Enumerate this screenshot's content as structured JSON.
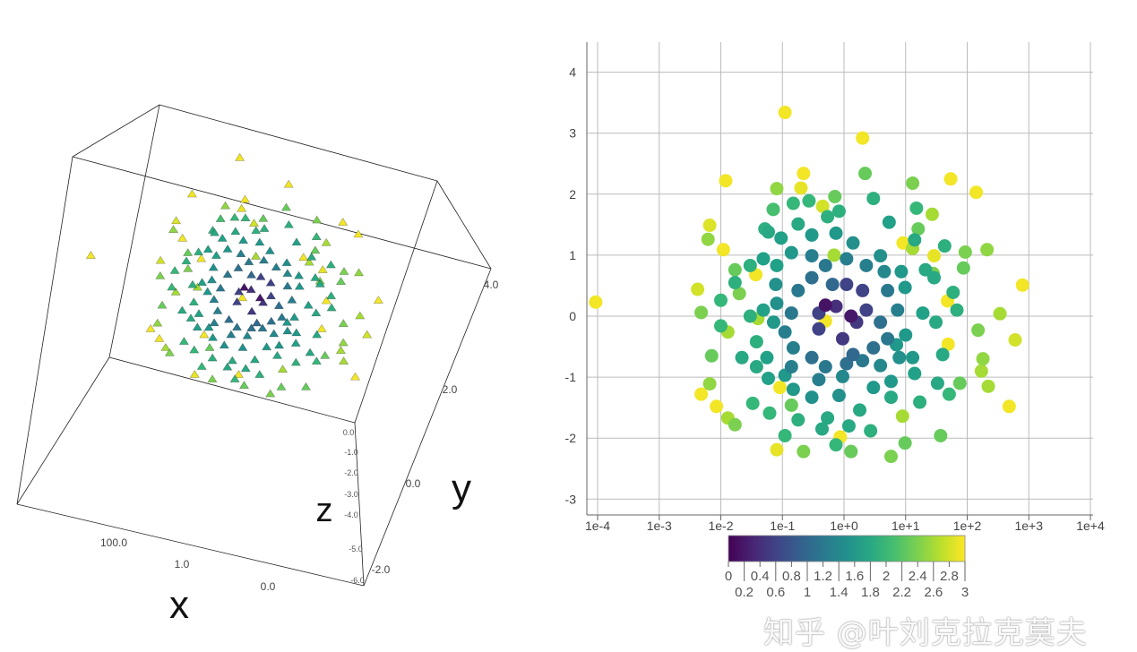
{
  "chart_data": [
    {
      "type": "scatter3d",
      "axes": {
        "x": {
          "label": "x",
          "ticks": [
            "100.0",
            "1.0",
            "0.0"
          ]
        },
        "y": {
          "label": "y",
          "ticks": [
            "4.0",
            "2.0",
            "0.0",
            "-2.0"
          ]
        },
        "z": {
          "label": "z",
          "ticks": [
            "0.0",
            "-1.0",
            "-2.0",
            "-3.0",
            "-4.0",
            "-5.0",
            "-6.0"
          ]
        }
      },
      "marker": "pyramid",
      "colorscale": "viridis"
    },
    {
      "type": "scatter",
      "xaxis": {
        "type": "log",
        "range": [
          0.0001,
          10000
        ],
        "ticks": [
          "1e-4",
          "1e-3",
          "1e-2",
          "1e-1",
          "1e+0",
          "1e+1",
          "1e+2",
          "1e+3",
          "1e+4"
        ]
      },
      "yaxis": {
        "range": [
          -3.3,
          4.5
        ],
        "ticks": [
          "-3",
          "-2",
          "-1",
          "0",
          "1",
          "2",
          "3",
          "4"
        ]
      },
      "grid": true,
      "colorscale": "viridis",
      "colorbar": {
        "placement": "bottom",
        "range": [
          0,
          3
        ],
        "ticks": [
          "0",
          "0.2",
          "0.4",
          "0.6",
          "0.8",
          "1",
          "1.2",
          "1.4",
          "1.6",
          "1.8",
          "2",
          "2.2",
          "2.4",
          "2.6",
          "2.8",
          "3"
        ]
      },
      "points_xyc": [
        [
          0.11,
          3.34,
          2.95
        ],
        [
          2.0,
          2.92,
          2.95
        ],
        [
          0.012,
          2.22,
          2.95
        ],
        [
          0.22,
          2.34,
          2.95
        ],
        [
          0.2,
          2.1,
          2.9
        ],
        [
          54,
          2.25,
          2.95
        ],
        [
          140,
          2.03,
          2.95
        ],
        [
          0.0066,
          1.49,
          2.85
        ],
        [
          0.011,
          1.09,
          2.95
        ],
        [
          0.45,
          1.8,
          2.8
        ],
        [
          9.1,
          1.2,
          2.95
        ],
        [
          0.037,
          0.68,
          2.95
        ],
        [
          790,
          0.51,
          2.95
        ],
        [
          48,
          0.25,
          2.95
        ],
        [
          9.3e-05,
          0.23,
          2.95
        ],
        [
          0.0042,
          0.44,
          2.8
        ],
        [
          0.5,
          -0.08,
          2.95
        ],
        [
          49,
          -0.46,
          2.95
        ],
        [
          600,
          -0.39,
          2.8
        ],
        [
          0.0048,
          -1.28,
          2.95
        ],
        [
          0.0085,
          -1.48,
          2.95
        ],
        [
          0.091,
          -1.17,
          2.95
        ],
        [
          480,
          -1.48,
          2.95
        ],
        [
          0.87,
          -1.98,
          2.95
        ],
        [
          0.081,
          -2.19,
          2.9
        ],
        [
          29,
          0.99,
          2.9
        ],
        [
          2.2,
          2.34,
          2.3
        ],
        [
          13,
          2.18,
          2.4
        ],
        [
          0.71,
          1.96,
          2.3
        ],
        [
          0.081,
          2.09,
          2.5
        ],
        [
          27,
          1.67,
          2.6
        ],
        [
          16,
          1.43,
          2.3
        ],
        [
          0.0062,
          1.26,
          2.5
        ],
        [
          210,
          1.09,
          2.5
        ],
        [
          93,
          1.05,
          2.4
        ],
        [
          87,
          0.79,
          2.3
        ],
        [
          0.017,
          0.76,
          2.3
        ],
        [
          0.02,
          0.37,
          2.4
        ],
        [
          0.0048,
          0.06,
          2.4
        ],
        [
          340,
          0.04,
          2.6
        ],
        [
          150,
          -0.23,
          2.4
        ],
        [
          0.013,
          -0.26,
          2.6
        ],
        [
          0.0071,
          -0.65,
          2.3
        ],
        [
          0.0066,
          -1.11,
          2.5
        ],
        [
          180,
          -0.7,
          2.5
        ],
        [
          170,
          -0.9,
          2.6
        ],
        [
          220,
          -1.15,
          2.6
        ],
        [
          76,
          -1.1,
          2.3
        ],
        [
          0.013,
          -1.67,
          2.6
        ],
        [
          0.017,
          -1.78,
          2.4
        ],
        [
          0.14,
          -1.46,
          2.3
        ],
        [
          8.9,
          -1.64,
          2.6
        ],
        [
          9.8,
          -2.08,
          2.3
        ],
        [
          5.8,
          -2.3,
          2.4
        ],
        [
          0.22,
          -2.22,
          2.4
        ],
        [
          1.3,
          -2.22,
          2.3
        ],
        [
          37,
          -1.96,
          2.3
        ],
        [
          0.04,
          -0.04,
          2.6
        ],
        [
          0.69,
          1.0,
          2.6
        ],
        [
          28,
          0.7,
          2.4
        ],
        [
          13,
          1.11,
          2.6
        ],
        [
          0.27,
          1.89,
          2.0
        ],
        [
          0.15,
          1.85,
          2.0
        ],
        [
          0.071,
          1.75,
          2.1
        ],
        [
          0.059,
          1.38,
          1.8
        ],
        [
          0.18,
          1.51,
          1.8
        ],
        [
          0.54,
          1.63,
          1.9
        ],
        [
          0.83,
          1.72,
          1.9
        ],
        [
          3.0,
          1.93,
          1.9
        ],
        [
          5.4,
          1.54,
          1.7
        ],
        [
          15,
          1.77,
          2.0
        ],
        [
          14,
          1.25,
          1.8
        ],
        [
          43,
          1.15,
          1.9
        ],
        [
          29,
          0.63,
          1.8
        ],
        [
          59,
          0.39,
          1.9
        ],
        [
          68,
          0.1,
          1.9
        ],
        [
          31,
          -0.1,
          1.8
        ],
        [
          40,
          -0.63,
          1.8
        ],
        [
          33,
          -1.1,
          1.8
        ],
        [
          51,
          -1.28,
          2.0
        ],
        [
          17,
          -1.41,
          1.9
        ],
        [
          14,
          -0.94,
          1.7
        ],
        [
          13,
          -0.68,
          1.6
        ],
        [
          7.1,
          -0.47,
          1.6
        ],
        [
          5.8,
          -1.07,
          1.6
        ],
        [
          5.8,
          -1.33,
          1.8
        ],
        [
          3.0,
          -1.17,
          1.6
        ],
        [
          2.7,
          -1.88,
          1.9
        ],
        [
          1.8,
          -1.54,
          1.8
        ],
        [
          1.2,
          -1.8,
          1.8
        ],
        [
          0.74,
          -2.11,
          2.0
        ],
        [
          0.54,
          -1.67,
          1.8
        ],
        [
          0.44,
          -1.85,
          1.8
        ],
        [
          0.18,
          -1.7,
          1.9
        ],
        [
          0.11,
          -1.96,
          2.0
        ],
        [
          0.062,
          -1.59,
          2.0
        ],
        [
          0.033,
          -1.43,
          2.0
        ],
        [
          0.059,
          -1.02,
          1.7
        ],
        [
          0.038,
          -0.83,
          1.8
        ],
        [
          0.022,
          -0.68,
          1.8
        ],
        [
          0.01,
          -0.16,
          2.0
        ],
        [
          0.01,
          0.26,
          2.0
        ],
        [
          0.017,
          0.55,
          1.9
        ],
        [
          0.03,
          0.83,
          1.9
        ],
        [
          0.049,
          0.94,
          1.7
        ],
        [
          0.052,
          1.43,
          1.9
        ],
        [
          0.095,
          1.28,
          1.7
        ],
        [
          0.038,
          -0.42,
          1.9
        ],
        [
          0.056,
          -0.68,
          1.7
        ],
        [
          0.11,
          -0.97,
          1.6
        ],
        [
          0.15,
          -1.2,
          1.6
        ],
        [
          0.3,
          -1.33,
          1.5
        ],
        [
          0.83,
          -1.3,
          1.5
        ],
        [
          0.95,
          -0.99,
          1.4
        ],
        [
          3.9,
          -0.81,
          1.4
        ],
        [
          7.9,
          -0.68,
          1.5
        ],
        [
          10,
          -0.31,
          1.6
        ],
        [
          19,
          0.05,
          1.7
        ],
        [
          9.8,
          0.47,
          1.6
        ],
        [
          8.5,
          0.73,
          1.6
        ],
        [
          21,
          0.76,
          1.8
        ],
        [
          3.9,
          0.99,
          1.5
        ],
        [
          1.4,
          1.2,
          1.5
        ],
        [
          0.74,
          1.36,
          1.6
        ],
        [
          0.3,
          1.33,
          1.6
        ],
        [
          0.14,
          1.04,
          1.6
        ],
        [
          0.081,
          0.83,
          1.7
        ],
        [
          0.078,
          0.52,
          1.5
        ],
        [
          0.049,
          0.1,
          1.7
        ],
        [
          0.072,
          -0.1,
          1.6
        ],
        [
          0.03,
          0.0,
          1.9
        ],
        [
          0.3,
          0.99,
          1.3
        ],
        [
          0.5,
          0.83,
          1.2
        ],
        [
          1.1,
          0.94,
          1.3
        ],
        [
          2.3,
          0.83,
          1.3
        ],
        [
          4.5,
          0.73,
          1.4
        ],
        [
          5.1,
          0.42,
          1.2
        ],
        [
          7.4,
          0.1,
          1.3
        ],
        [
          3.9,
          -0.1,
          1.1
        ],
        [
          5.1,
          -0.37,
          1.2
        ],
        [
          3.0,
          -0.52,
          1.1
        ],
        [
          2.0,
          -0.73,
          1.2
        ],
        [
          1.1,
          -0.78,
          1.1
        ],
        [
          0.5,
          -0.83,
          1.2
        ],
        [
          0.3,
          -0.68,
          1.1
        ],
        [
          0.15,
          -0.52,
          1.3
        ],
        [
          0.11,
          -0.26,
          1.3
        ],
        [
          0.14,
          0.05,
          1.2
        ],
        [
          0.18,
          0.42,
          1.2
        ],
        [
          0.3,
          0.63,
          1.1
        ],
        [
          0.65,
          0.52,
          1.0
        ],
        [
          0.14,
          -0.83,
          1.3
        ],
        [
          0.39,
          -1.04,
          1.3
        ],
        [
          1.4,
          -0.63,
          1.0
        ],
        [
          0.081,
          0.21,
          1.5
        ],
        [
          1.1,
          0.52,
          0.6
        ],
        [
          2.0,
          0.42,
          0.6
        ],
        [
          2.3,
          0.1,
          0.6
        ],
        [
          0.74,
          0.16,
          0.4
        ],
        [
          0.39,
          0.05,
          0.6
        ],
        [
          0.95,
          -0.37,
          0.5
        ],
        [
          0.39,
          -0.21,
          0.6
        ],
        [
          1.6,
          -0.1,
          0.5
        ],
        [
          0.5,
          0.18,
          0.15
        ],
        [
          1.3,
          0.0,
          0.2
        ]
      ]
    }
  ],
  "watermark": "知乎 @叶刘克拉克莫夫"
}
